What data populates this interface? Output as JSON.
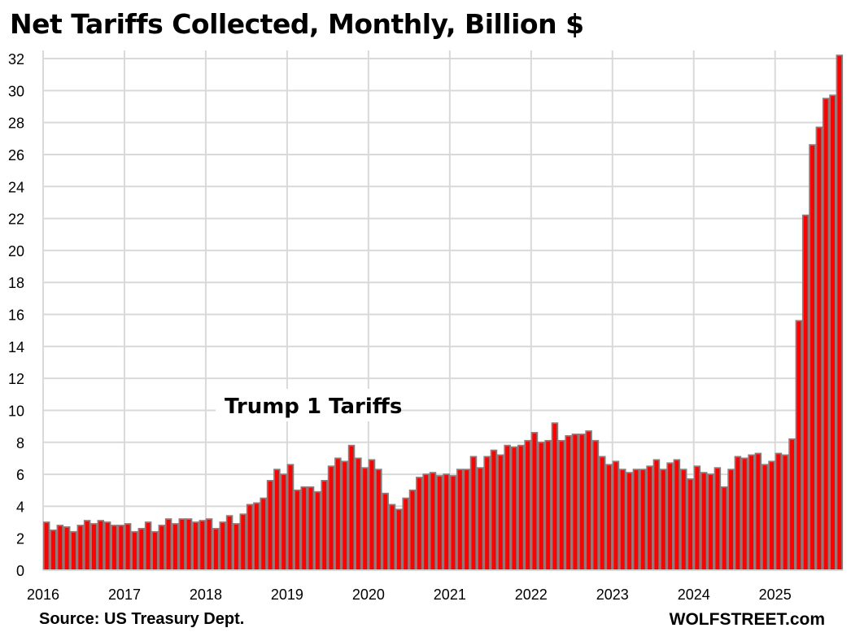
{
  "chart_data": {
    "type": "bar",
    "title": "Net Tariffs Collected, Monthly, Billion $",
    "xlabel": "",
    "ylabel": "",
    "ylim": [
      0,
      32
    ],
    "yticks": [
      0,
      2,
      4,
      6,
      8,
      10,
      12,
      14,
      16,
      18,
      20,
      22,
      24,
      26,
      28,
      30,
      32
    ],
    "xtick_labels": [
      "2016",
      "2017",
      "2018",
      "2019",
      "2020",
      "2021",
      "2022",
      "2023",
      "2024",
      "2025"
    ],
    "grid": true,
    "start": "2016-01",
    "frequency": "monthly",
    "bar_color": "#ff0000",
    "bar_edge_color": "#808080",
    "values": [
      3.0,
      2.5,
      2.8,
      2.7,
      2.4,
      2.8,
      3.1,
      2.9,
      3.1,
      3.0,
      2.8,
      2.8,
      2.9,
      2.4,
      2.6,
      3.0,
      2.4,
      2.8,
      3.2,
      2.9,
      3.2,
      3.2,
      3.0,
      3.1,
      3.2,
      2.6,
      3.0,
      3.4,
      2.9,
      3.5,
      4.1,
      4.2,
      4.5,
      5.6,
      6.3,
      6.0,
      6.6,
      5.0,
      5.2,
      5.2,
      4.9,
      5.6,
      6.5,
      7.0,
      6.8,
      7.8,
      7.0,
      6.4,
      6.9,
      6.3,
      4.8,
      4.1,
      3.8,
      4.5,
      5.0,
      5.8,
      6.0,
      6.1,
      5.9,
      6.0,
      5.9,
      6.3,
      6.3,
      7.1,
      6.4,
      7.1,
      7.5,
      7.2,
      7.8,
      7.7,
      7.8,
      8.1,
      8.6,
      8.0,
      8.1,
      9.2,
      8.1,
      8.4,
      8.5,
      8.5,
      8.7,
      8.1,
      7.1,
      6.6,
      6.8,
      6.3,
      6.1,
      6.3,
      6.3,
      6.5,
      6.9,
      6.3,
      6.7,
      6.9,
      6.3,
      5.7,
      6.5,
      6.1,
      6.0,
      6.4,
      5.2,
      6.3,
      7.1,
      7.0,
      7.2,
      7.3,
      6.6,
      6.8,
      7.3,
      7.2,
      8.2,
      15.6,
      22.2,
      26.6,
      27.7,
      29.5,
      29.7,
      32.2
    ],
    "annotations": [
      "Trump 1 Tariffs"
    ]
  },
  "source": "Source: US Treasury Dept.",
  "brand": "WOLFSTREET.com"
}
